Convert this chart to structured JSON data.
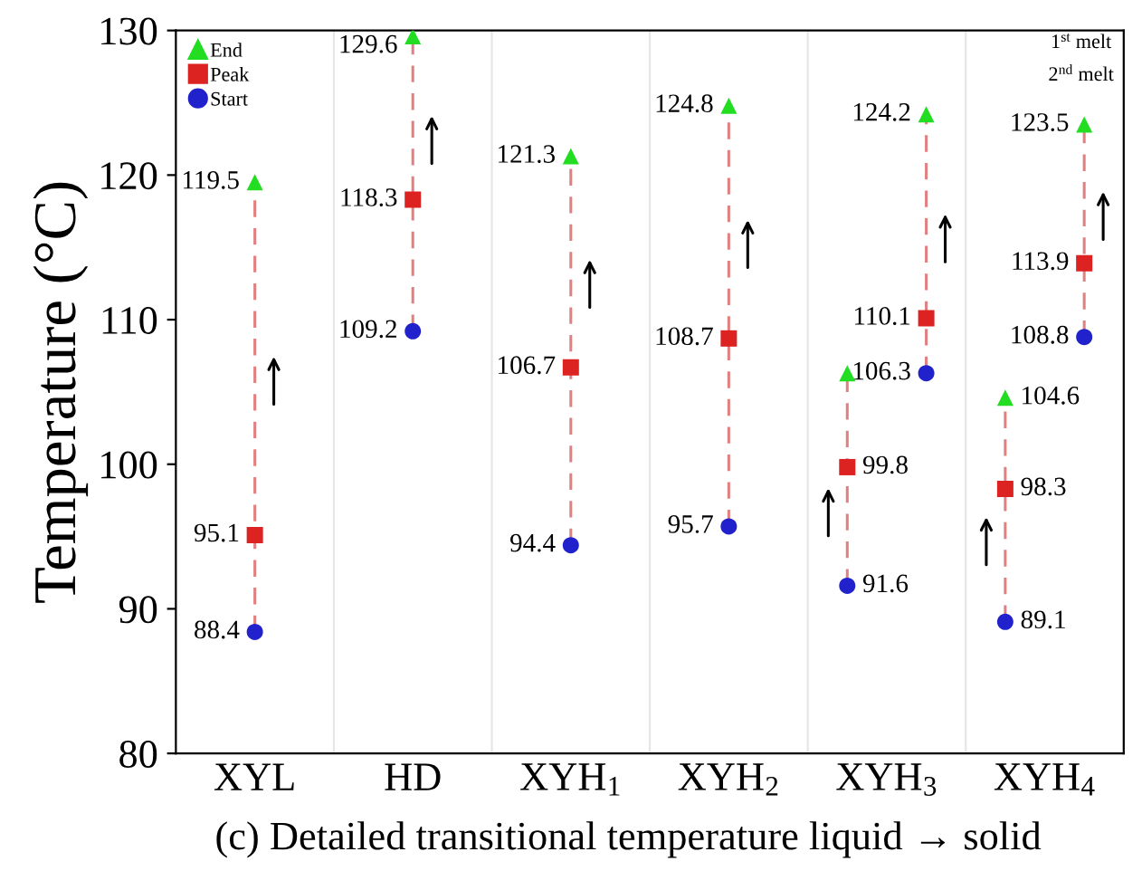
{
  "chart_data": {
    "type": "scatter",
    "ylabel": "Temperature (°C)",
    "categories": [
      "XYL",
      "HD",
      "XYH$_{1}$",
      "XYH$_{2}$",
      "XYH$_{3}$",
      "XYH$_{4}$"
    ],
    "ylim": [
      80,
      130
    ],
    "yticks": [
      80,
      90,
      100,
      110,
      120,
      130
    ],
    "series": [
      {
        "name": "End",
        "color": "#22dd22",
        "marker": "triangle",
        "values": [
          119.5,
          129.6,
          121.3,
          124.8,
          106.3,
          104.6
        ],
        "value_labels": [
          "119.5",
          "129.6",
          "121.3",
          "124.8",
          null,
          "104.6"
        ]
      },
      {
        "name": "Peak",
        "color": "#dd2222",
        "marker": "square",
        "values": [
          95.1,
          118.3,
          106.7,
          108.7,
          99.8,
          98.3
        ],
        "value_labels": [
          "95.1",
          "118.3",
          "106.7",
          "108.7",
          "99.8",
          "98.3"
        ]
      },
      {
        "name": "Start",
        "color": "#2222cc",
        "marker": "circle",
        "values": [
          88.4,
          109.2,
          94.4,
          95.7,
          91.6,
          89.1
        ],
        "value_labels": [
          "88.4",
          "109.2",
          "94.4",
          "95.7",
          "91.6",
          "89.1"
        ]
      },
      {
        "color": "#22dd22",
        "marker": "triangle",
        "values": [
          null,
          null,
          null,
          null,
          124.2,
          123.5
        ],
        "value_labels": [
          null,
          null,
          null,
          null,
          "124.2",
          "123.5"
        ]
      },
      {
        "color": "#dd2222",
        "marker": "square",
        "values": [
          null,
          null,
          null,
          null,
          110.1,
          113.9
        ],
        "value_labels": [
          null,
          null,
          null,
          null,
          "110.1",
          "113.9"
        ]
      },
      {
        "color": "#2222cc",
        "marker": "circle",
        "values": [
          null,
          null,
          null,
          null,
          106.3,
          108.8
        ],
        "value_labels": [
          null,
          null,
          null,
          null,
          "106.3",
          "108.8"
        ]
      }
    ],
    "line_style": "dashed",
    "legend": "top left",
    "grid": "x",
    "annotations": [
      "1$^{st}$ melt",
      "2$^{nd}$ melt",
      "(c) Detailed transitional temperature liquid → solid"
    ]
  }
}
